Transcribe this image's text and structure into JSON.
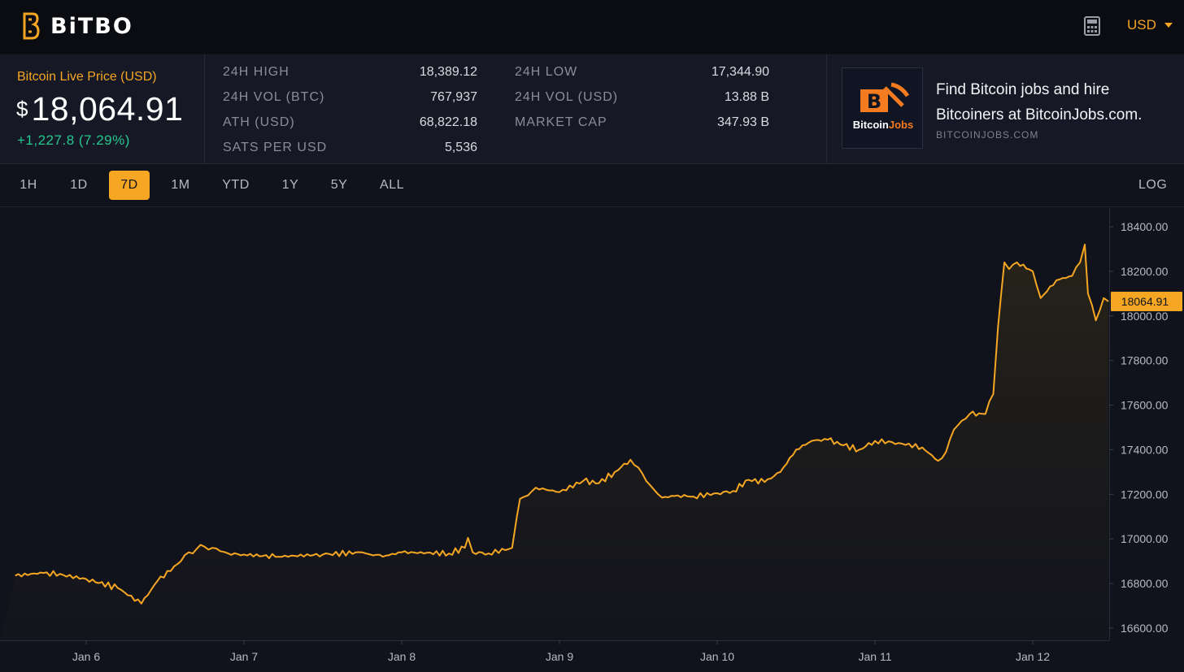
{
  "header": {
    "logo_text": "BiTBO",
    "currency": "USD",
    "brand_color": "#f5a623"
  },
  "price": {
    "label": "Bitcoin Live Price (USD)",
    "currency_symbol": "$",
    "value": "18,064.91",
    "change": "+1,227.8 (7.29%)"
  },
  "stats": {
    "high_24h": {
      "label": "24H HIGH",
      "value": "18,389.12"
    },
    "low_24h": {
      "label": "24H LOW",
      "value": "17,344.90"
    },
    "vol_btc": {
      "label": "24H VOL (BTC)",
      "value": "767,937"
    },
    "vol_usd": {
      "label": "24H VOL (USD)",
      "value": "13.88 B"
    },
    "ath": {
      "label": "ATH (USD)",
      "value": "68,822.18"
    },
    "market_cap": {
      "label": "MARKET CAP",
      "value": "347.93 B"
    },
    "sats": {
      "label": "SATS PER USD",
      "value": "5,536"
    }
  },
  "ad": {
    "logo_text_1": "Bitcoin",
    "logo_text_2": "Jobs",
    "title": "Find Bitcoin jobs and hire Bitcoiners at BitcoinJobs.com.",
    "url": "BITCOINJOBS.COM"
  },
  "ranges": {
    "items": [
      "1H",
      "1D",
      "7D",
      "1M",
      "YTD",
      "1Y",
      "5Y",
      "ALL"
    ],
    "active": "7D",
    "log_label": "LOG"
  },
  "chart_data": {
    "type": "area",
    "y_ticks": [
      "18400.00",
      "18200.00",
      "18000.00",
      "17800.00",
      "17600.00",
      "17400.00",
      "17200.00",
      "17000.00",
      "16800.00",
      "16600.00"
    ],
    "x_ticks": [
      "Jan 6",
      "Jan 7",
      "Jan 8",
      "Jan 9",
      "Jan 10",
      "Jan 11",
      "Jan 12"
    ],
    "ylim": [
      16600,
      18400
    ],
    "current_price_label": "18064.91",
    "current_price": 18064.91,
    "line_color": "#f5a623",
    "x": [
      5.55,
      5.75,
      6.0,
      6.2,
      6.35,
      6.45,
      6.6,
      6.65,
      6.7,
      6.75,
      6.8,
      6.85,
      6.9,
      7.0,
      7.2,
      7.5,
      7.75,
      7.8,
      7.9,
      8.0,
      8.3,
      8.4,
      8.42,
      8.45,
      8.55,
      8.7,
      8.73,
      8.75,
      8.8,
      8.85,
      9.0,
      9.15,
      9.25,
      9.35,
      9.45,
      9.5,
      9.55,
      9.6,
      9.65,
      9.75,
      9.85,
      10.0,
      10.1,
      10.2,
      10.3,
      10.4,
      10.5,
      10.6,
      10.7,
      10.8,
      10.9,
      11.0,
      11.15,
      11.3,
      11.4,
      11.45,
      11.5,
      11.55,
      11.6,
      11.7,
      11.75,
      11.78,
      11.82,
      11.85,
      11.9,
      12.0,
      12.05,
      12.15,
      12.25,
      12.3,
      12.33,
      12.35,
      12.4,
      12.45,
      12.48
    ],
    "y": [
      16835,
      16850,
      16820,
      16780,
      16710,
      16810,
      16900,
      16940,
      16955,
      16965,
      16960,
      16945,
      16935,
      16930,
      16920,
      16930,
      16940,
      16930,
      16925,
      16940,
      16935,
      16960,
      17005,
      16940,
      16935,
      16960,
      17100,
      17180,
      17195,
      17230,
      17210,
      17260,
      17250,
      17300,
      17355,
      17320,
      17260,
      17220,
      17185,
      17195,
      17190,
      17205,
      17215,
      17265,
      17255,
      17300,
      17400,
      17440,
      17445,
      17420,
      17400,
      17440,
      17430,
      17410,
      17350,
      17390,
      17490,
      17530,
      17560,
      17560,
      17650,
      17950,
      18240,
      18210,
      18240,
      18200,
      18080,
      18160,
      18180,
      18240,
      18320,
      18100,
      17980,
      18080,
      18065
    ]
  }
}
